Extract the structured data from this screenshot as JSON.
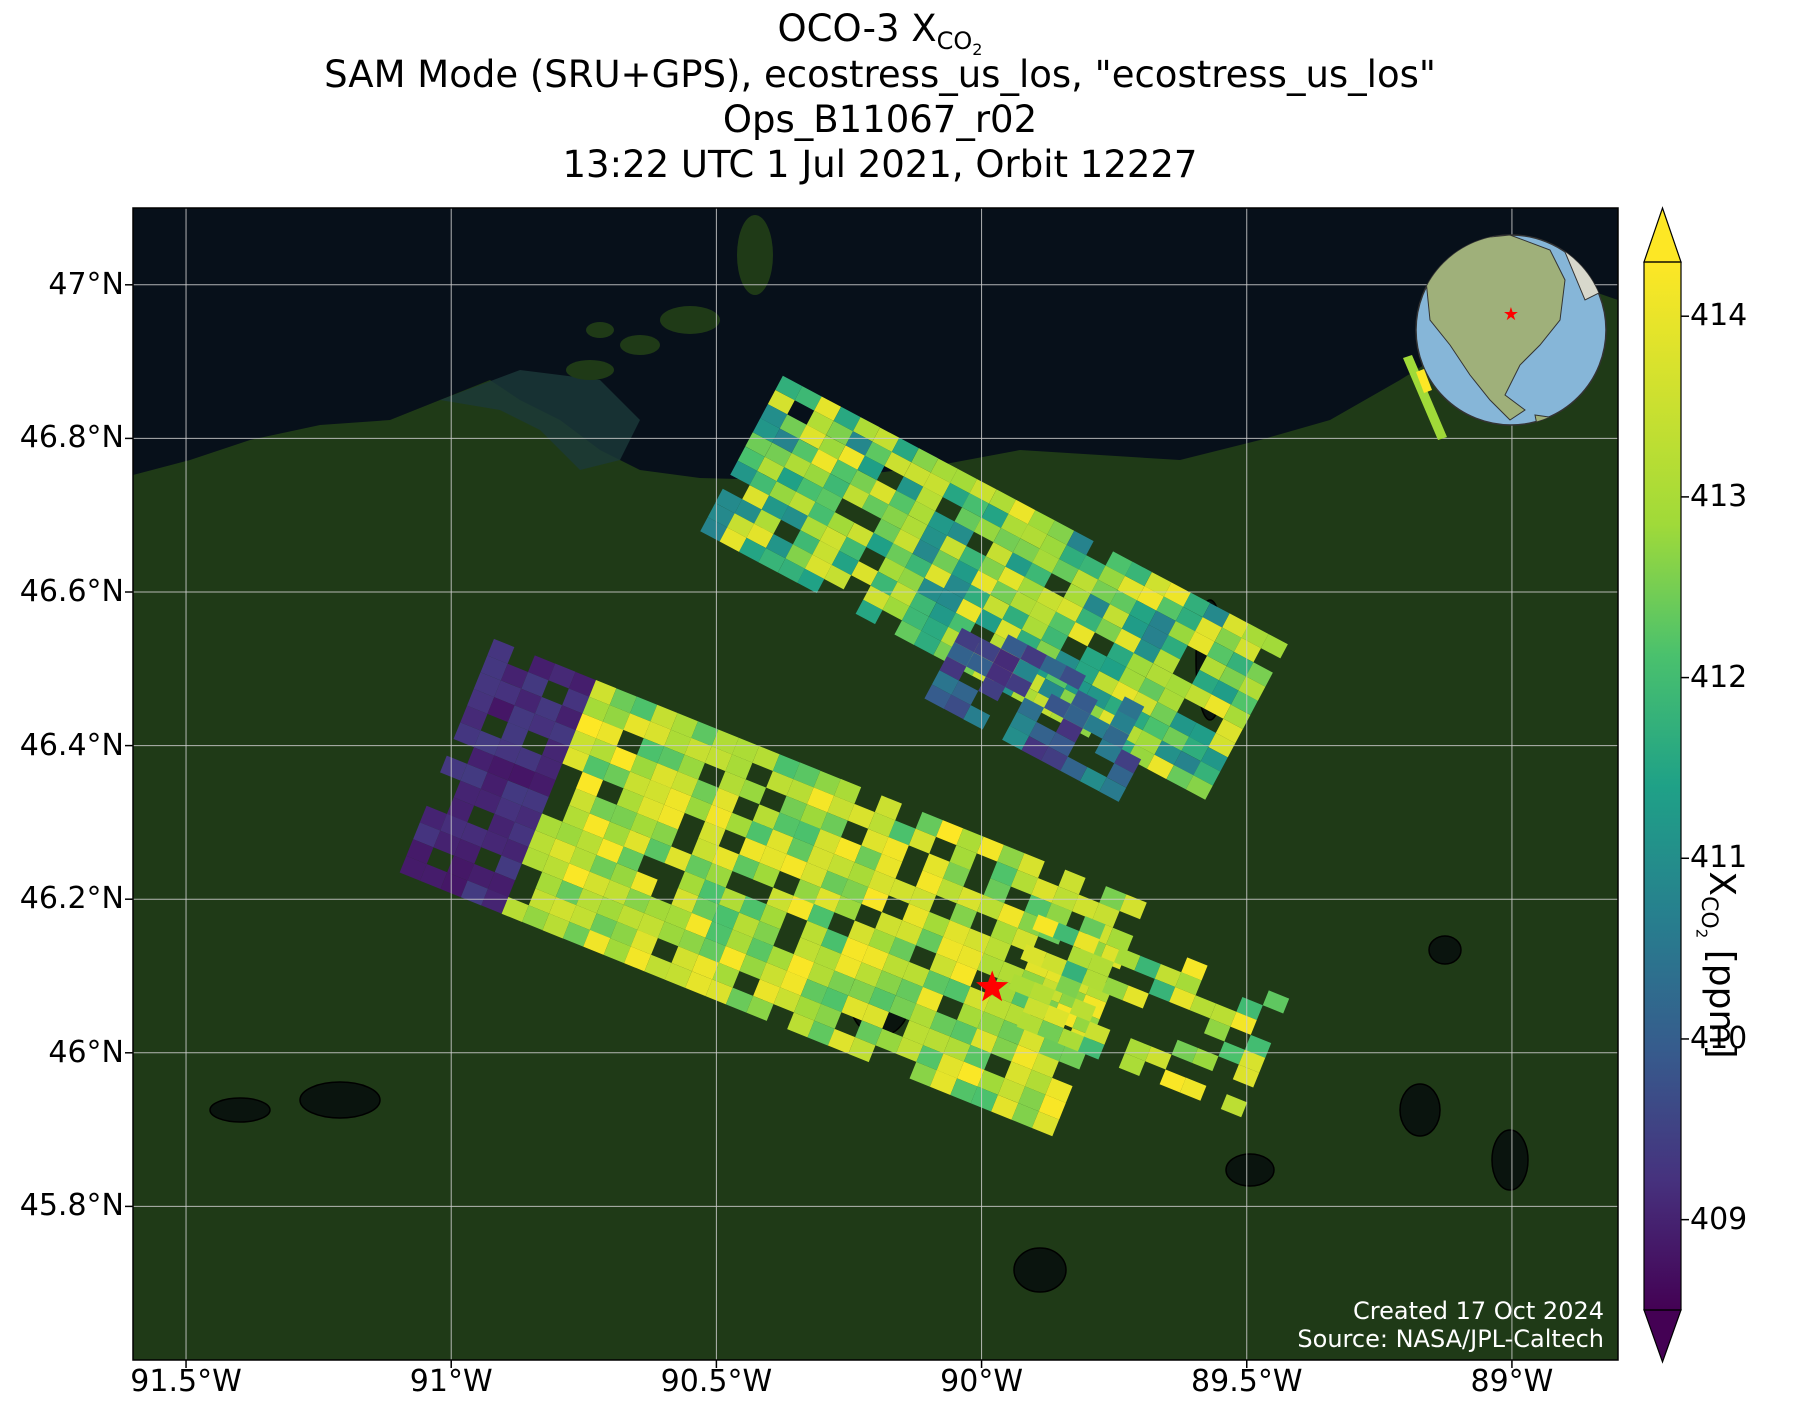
{
  "title": {
    "line1_prefix": "OCO-3 X",
    "line1_sub": "CO",
    "line1_subsub": "2",
    "line2": "SAM Mode (SRU+GPS), ecostress_us_los, \"ecostress_us_los\"",
    "line3": "Ops_B11067_r02",
    "line4": "13:22 UTC 1 Jul 2021, Orbit 12227"
  },
  "map": {
    "lon_range": [
      -91.6,
      -88.8
    ],
    "lat_range": [
      45.6,
      47.1
    ],
    "lat_ticks": [
      {
        "value": 47.0,
        "label": "47°N"
      },
      {
        "value": 46.8,
        "label": "46.8°N"
      },
      {
        "value": 46.6,
        "label": "46.6°N"
      },
      {
        "value": 46.4,
        "label": "46.4°N"
      },
      {
        "value": 46.2,
        "label": "46.2°N"
      },
      {
        "value": 46.0,
        "label": "46°N"
      },
      {
        "value": 45.8,
        "label": "45.8°N"
      }
    ],
    "lon_ticks": [
      {
        "value": -91.5,
        "label": "91.5°W"
      },
      {
        "value": -91.0,
        "label": "91°W"
      },
      {
        "value": -90.5,
        "label": "90.5°W"
      },
      {
        "value": -90.0,
        "label": "90°W"
      },
      {
        "value": -89.5,
        "label": "89.5°W"
      },
      {
        "value": -89.0,
        "label": "89°W"
      }
    ],
    "target_marker": {
      "lon": -89.98,
      "lat": 46.085,
      "color": "#ff0000"
    },
    "colors": {
      "water": "#07101a",
      "land": "#1f3a17",
      "marker": "#ff0000"
    }
  },
  "colorbar": {
    "min": 408.5,
    "max": 414.3,
    "ticks": [
      {
        "value": 409,
        "label": "409"
      },
      {
        "value": 410,
        "label": "410"
      },
      {
        "value": 411,
        "label": "411"
      },
      {
        "value": 412,
        "label": "412"
      },
      {
        "value": 413,
        "label": "413"
      },
      {
        "value": 414,
        "label": "414"
      }
    ],
    "label_prefix": "X",
    "label_sub": "CO",
    "label_subsub": "2",
    "label_suffix": " [ppm]",
    "colormap": "viridis"
  },
  "credits": {
    "created": "Created 17 Oct 2024",
    "source": "Source: NASA/JPL-Caltech"
  }
}
